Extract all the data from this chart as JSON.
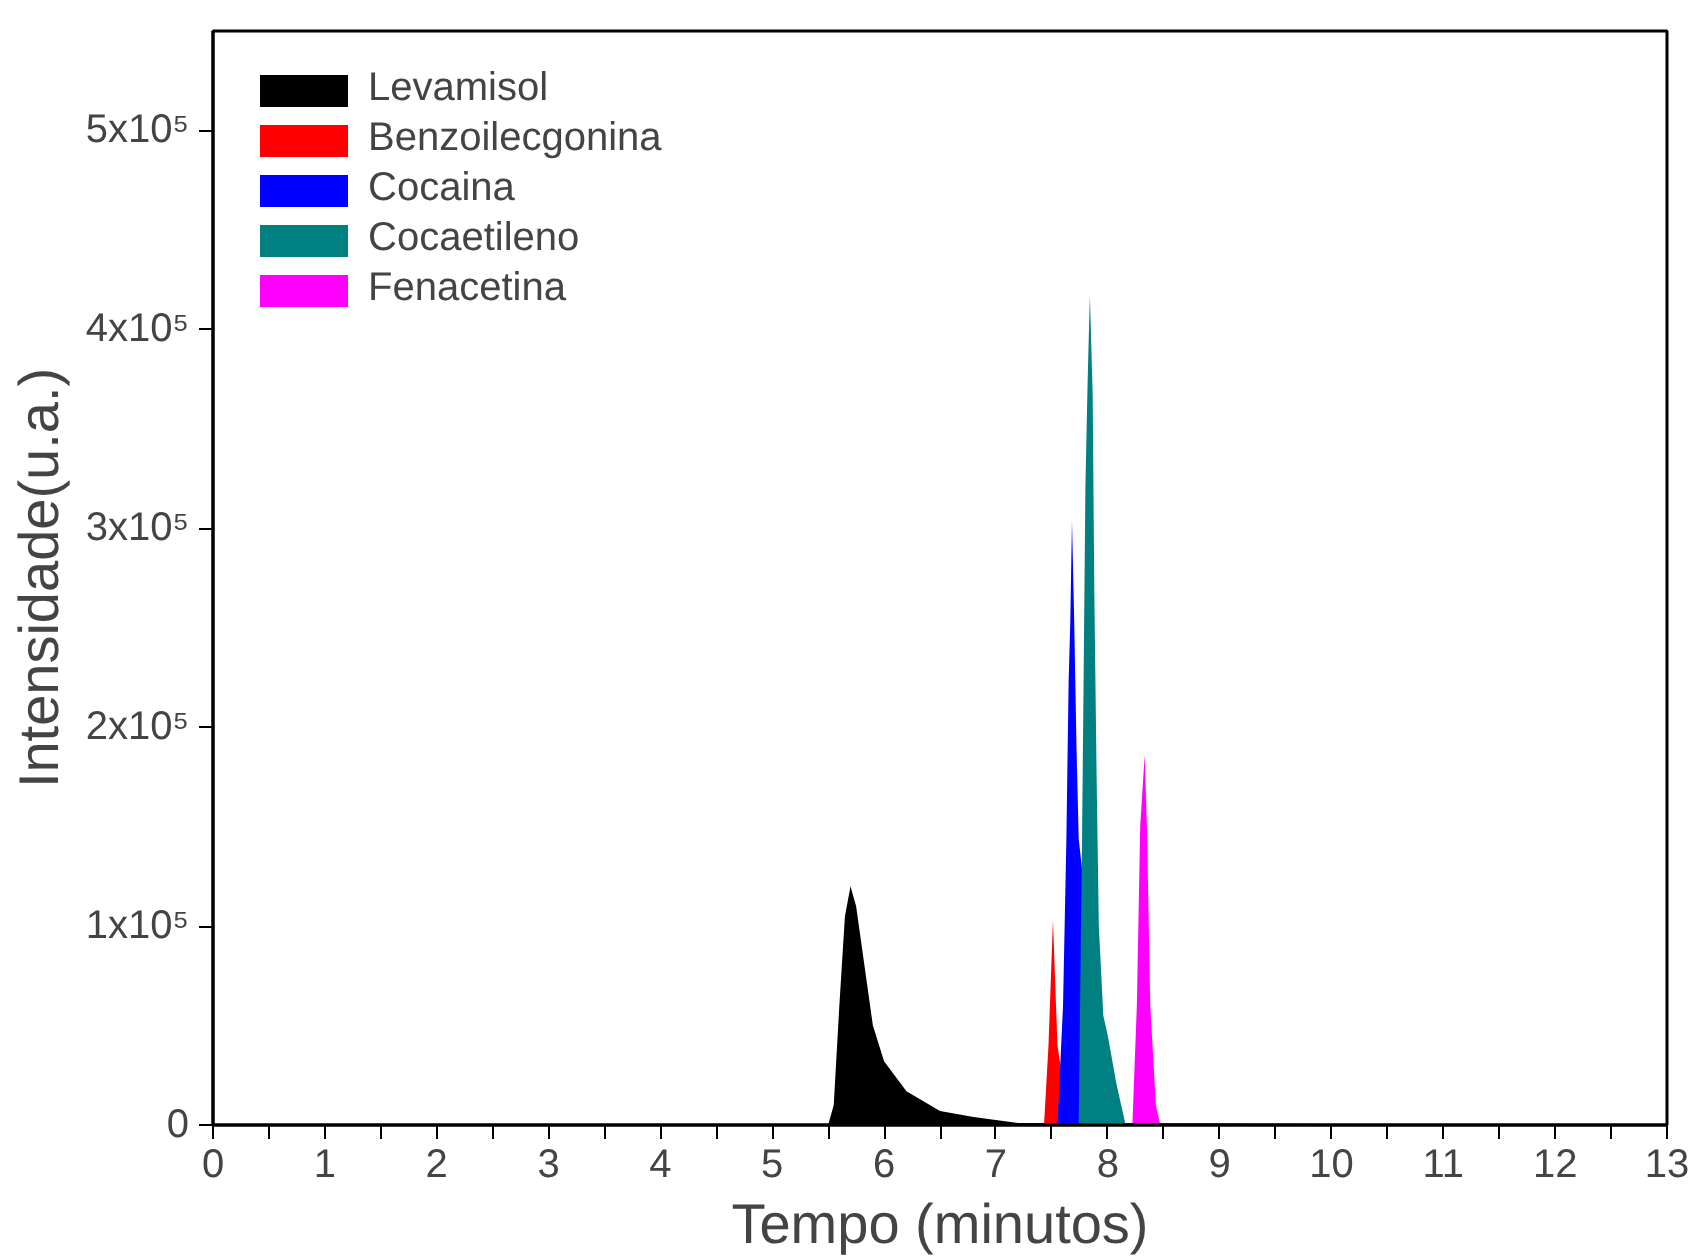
{
  "chart_data": {
    "type": "area",
    "xlabel": "Tempo (minutos)",
    "ylabel": "Intensidade(u.a.)",
    "xlim": [
      0,
      13
    ],
    "ylim": [
      0,
      550000
    ],
    "xticks": [
      0,
      {
        "value": 0.5,
        "label": null
      },
      1,
      {
        "value": 1.5,
        "label": null
      },
      2,
      {
        "value": 2.5,
        "label": null
      },
      3,
      {
        "value": 3.5,
        "label": null
      },
      4,
      {
        "value": 4.5,
        "label": null
      },
      5,
      {
        "value": 5.5,
        "label": null
      },
      6,
      {
        "value": 6.5,
        "label": null
      },
      7,
      {
        "value": 7.5,
        "label": null
      },
      8,
      {
        "value": 8.5,
        "label": null
      },
      9,
      {
        "value": 9.5,
        "label": null
      },
      10,
      {
        "value": 10.5,
        "label": null
      },
      11,
      {
        "value": 11.5,
        "label": null
      },
      12,
      {
        "value": 12.5,
        "label": null
      },
      13
    ],
    "yticks": [
      0,
      {
        "value": 100000,
        "label": "1x10⁵"
      },
      {
        "value": 200000,
        "label": "2x10⁵"
      },
      {
        "value": 300000,
        "label": "3x10⁵"
      },
      {
        "value": 400000,
        "label": "4x10⁵"
      },
      {
        "value": 500000,
        "label": "5x10⁵"
      }
    ],
    "grid": false,
    "legend": "top left",
    "series": [
      {
        "name": "Levamisol",
        "color": "#000000",
        "x": [
          0,
          5.5,
          5.55,
          5.6,
          5.65,
          5.7,
          5.75,
          5.8,
          5.9,
          6.0,
          6.2,
          6.5,
          6.8,
          7.2,
          13
        ],
        "values": [
          0,
          0,
          10000,
          60000,
          105000,
          120000,
          110000,
          90000,
          50000,
          32000,
          17000,
          7000,
          4000,
          1000,
          0
        ]
      },
      {
        "name": "Benzoilecgonina",
        "color": "#ff0000",
        "x": [
          0,
          7.43,
          7.47,
          7.51,
          7.55,
          7.66,
          13
        ],
        "values": [
          0,
          0,
          40000,
          103000,
          40000,
          0,
          0
        ]
      },
      {
        "name": "Cocaina",
        "color": "#0000ff",
        "x": [
          0,
          7.55,
          7.6,
          7.63,
          7.65,
          7.665,
          7.68,
          7.7,
          7.72,
          7.74,
          8.02,
          13
        ],
        "values": [
          0,
          0,
          60000,
          144000,
          223000,
          253000,
          304000,
          253000,
          191000,
          144000,
          0,
          0
        ]
      },
      {
        "name": "Cocaetileno",
        "color": "#008080",
        "x": [
          0,
          7.74,
          7.77,
          7.79,
          7.8,
          7.82,
          7.84,
          7.865,
          7.88,
          7.9,
          7.92,
          7.96,
          8.0,
          8.08,
          8.16,
          13
        ],
        "values": [
          0,
          0,
          144000,
          260000,
          321000,
          374000,
          417000,
          367000,
          267000,
          176000,
          100000,
          55000,
          45000,
          20000,
          0,
          0
        ]
      },
      {
        "name": "Fenacetina",
        "color": "#ff00ff",
        "x": [
          0,
          8.22,
          8.26,
          8.29,
          8.33,
          8.35,
          8.38,
          8.43,
          8.47,
          13
        ],
        "values": [
          0,
          0,
          60000,
          150000,
          186000,
          150000,
          60000,
          10000,
          0,
          0
        ]
      }
    ]
  }
}
